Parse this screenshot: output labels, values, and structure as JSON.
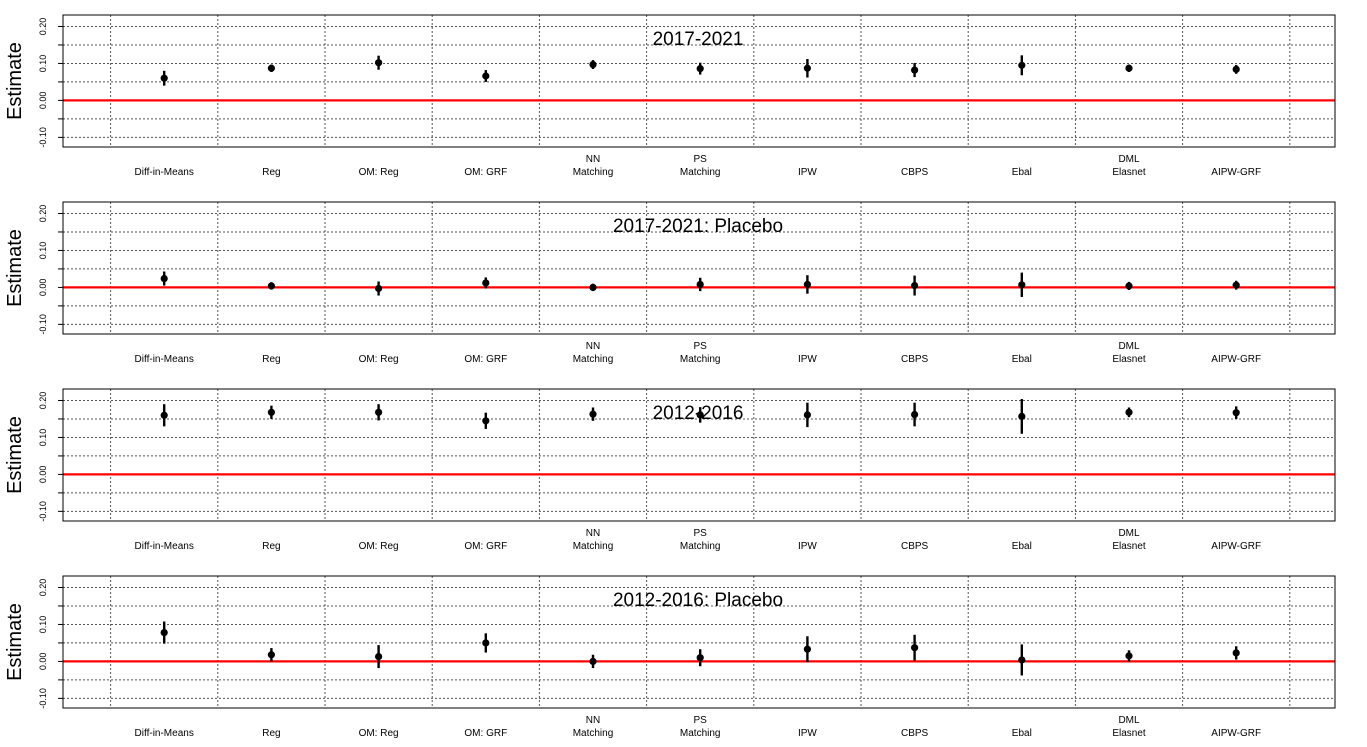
{
  "chart_data": [
    {
      "type": "scatter",
      "title": "2017-2021",
      "ylabel": "Estimate",
      "ylim": [
        -0.11,
        0.215
      ],
      "yticks": [
        "-0.10",
        "0.00",
        "0.10",
        "0.20"
      ],
      "grid": true,
      "reference_line": {
        "y": 0.0,
        "color": "#ff0000"
      },
      "categories": [
        [
          "Diff-in-Means"
        ],
        [
          "Reg"
        ],
        [
          "OM: Reg"
        ],
        [
          "OM: GRF"
        ],
        [
          "NN",
          "Matching"
        ],
        [
          "PS",
          "Matching"
        ],
        [
          "IPW"
        ],
        [
          "CBPS"
        ],
        [
          "Ebal"
        ],
        [
          "DML",
          "Elasnet"
        ],
        [
          "AIPW-GRF"
        ]
      ],
      "estimates": [
        0.06,
        0.087,
        0.102,
        0.066,
        0.097,
        0.086,
        0.087,
        0.082,
        0.095,
        0.087,
        0.084
      ],
      "ci_low": [
        0.04,
        0.077,
        0.083,
        0.05,
        0.085,
        0.07,
        0.062,
        0.063,
        0.068,
        0.077,
        0.072
      ],
      "ci_high": [
        0.08,
        0.097,
        0.121,
        0.082,
        0.109,
        0.102,
        0.112,
        0.101,
        0.122,
        0.097,
        0.096
      ]
    },
    {
      "type": "scatter",
      "title": "2017-2021: Placebo",
      "ylabel": "Estimate",
      "ylim": [
        -0.11,
        0.215
      ],
      "yticks": [
        "-0.10",
        "0.00",
        "0.10",
        "0.20"
      ],
      "grid": true,
      "reference_line": {
        "y": 0.0,
        "color": "#ff0000"
      },
      "categories": [
        [
          "Diff-in-Means"
        ],
        [
          "Reg"
        ],
        [
          "OM: Reg"
        ],
        [
          "OM: GRF"
        ],
        [
          "NN",
          "Matching"
        ],
        [
          "PS",
          "Matching"
        ],
        [
          "IPW"
        ],
        [
          "CBPS"
        ],
        [
          "Ebal"
        ],
        [
          "DML",
          "Elasnet"
        ],
        [
          "AIPW-GRF"
        ]
      ],
      "estimates": [
        0.024,
        0.004,
        -0.003,
        0.012,
        0.0,
        0.008,
        0.008,
        0.005,
        0.007,
        0.004,
        0.006
      ],
      "ci_low": [
        0.005,
        -0.006,
        -0.022,
        -0.003,
        -0.01,
        -0.01,
        -0.017,
        -0.022,
        -0.026,
        -0.007,
        -0.006
      ],
      "ci_high": [
        0.043,
        0.014,
        0.016,
        0.027,
        0.01,
        0.026,
        0.033,
        0.032,
        0.04,
        0.015,
        0.018
      ]
    },
    {
      "type": "scatter",
      "title": "2012-2016",
      "ylabel": "Estimate",
      "ylim": [
        -0.11,
        0.215
      ],
      "yticks": [
        "-0.10",
        "0.00",
        "0.10",
        "0.20"
      ],
      "grid": true,
      "reference_line": {
        "y": 0.0,
        "color": "#ff0000"
      },
      "categories": [
        [
          "Diff-in-Means"
        ],
        [
          "Reg"
        ],
        [
          "OM: Reg"
        ],
        [
          "OM: GRF"
        ],
        [
          "NN",
          "Matching"
        ],
        [
          "PS",
          "Matching"
        ],
        [
          "IPW"
        ],
        [
          "CBPS"
        ],
        [
          "Ebal"
        ],
        [
          "DML",
          "Elasnet"
        ],
        [
          "AIPW-GRF"
        ]
      ],
      "estimates": [
        0.16,
        0.168,
        0.168,
        0.145,
        0.163,
        0.161,
        0.161,
        0.162,
        0.157,
        0.168,
        0.167
      ],
      "ci_low": [
        0.13,
        0.15,
        0.146,
        0.123,
        0.145,
        0.14,
        0.128,
        0.13,
        0.11,
        0.155,
        0.15
      ],
      "ci_high": [
        0.19,
        0.186,
        0.19,
        0.167,
        0.181,
        0.182,
        0.194,
        0.194,
        0.204,
        0.181,
        0.184
      ]
    },
    {
      "type": "scatter",
      "title": "2012-2016: Placebo",
      "ylabel": "Estimate",
      "ylim": [
        -0.11,
        0.215
      ],
      "yticks": [
        "-0.10",
        "0.00",
        "0.10",
        "0.20"
      ],
      "grid": true,
      "reference_line": {
        "y": 0.0,
        "color": "#ff0000"
      },
      "categories": [
        [
          "Diff-in-Means"
        ],
        [
          "Reg"
        ],
        [
          "OM: Reg"
        ],
        [
          "OM: GRF"
        ],
        [
          "NN",
          "Matching"
        ],
        [
          "PS",
          "Matching"
        ],
        [
          "IPW"
        ],
        [
          "CBPS"
        ],
        [
          "Ebal"
        ],
        [
          "DML",
          "Elasnet"
        ],
        [
          "AIPW-GRF"
        ]
      ],
      "estimates": [
        0.078,
        0.018,
        0.013,
        0.05,
        0.0,
        0.01,
        0.033,
        0.037,
        0.004,
        0.015,
        0.023
      ],
      "ci_low": [
        0.048,
        0.0,
        -0.018,
        0.024,
        -0.018,
        -0.013,
        -0.002,
        0.002,
        -0.038,
        0.0,
        0.005
      ],
      "ci_high": [
        0.108,
        0.036,
        0.044,
        0.076,
        0.018,
        0.033,
        0.068,
        0.072,
        0.046,
        0.03,
        0.041
      ]
    }
  ]
}
